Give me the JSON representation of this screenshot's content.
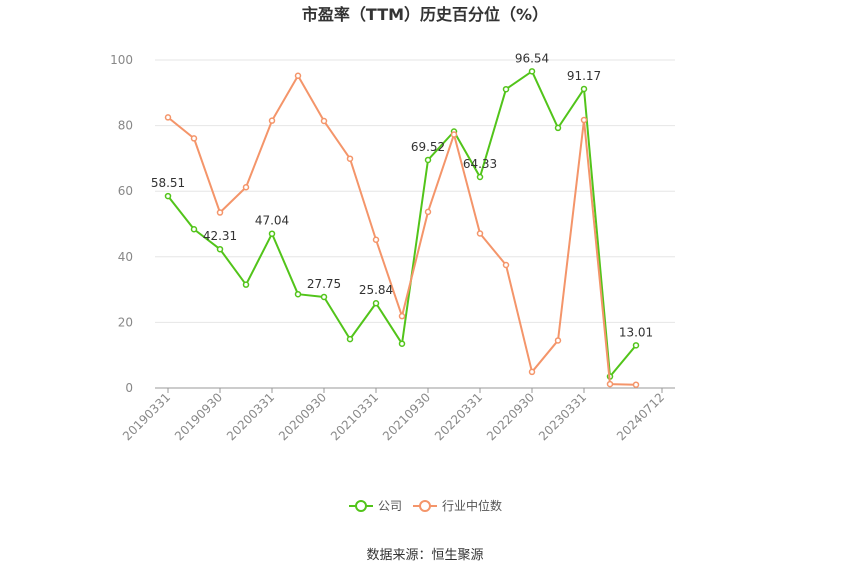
{
  "chart_data": {
    "type": "line",
    "title": "市盈率（TTM）历史百分位（%）",
    "xlabel": "",
    "ylabel": "",
    "ylim": [
      0,
      100
    ],
    "yticks": [
      0,
      20,
      40,
      60,
      80,
      100
    ],
    "x_tick_labels": [
      "20190331",
      "20190930",
      "20200331",
      "20200930",
      "20210331",
      "20210930",
      "20220331",
      "20220930",
      "20230331",
      "20240712"
    ],
    "x_tick_indices": [
      0,
      2,
      4,
      6,
      8,
      10,
      12,
      14,
      16,
      19
    ],
    "x_count": 20,
    "grid": true,
    "legend_position": "bottom",
    "series": [
      {
        "name": "公司",
        "color": "#52c41a",
        "values": [
          58.51,
          48.4,
          42.31,
          31.5,
          47.04,
          28.6,
          27.75,
          14.9,
          25.84,
          13.5,
          69.52,
          78.2,
          64.33,
          91.1,
          96.54,
          79.3,
          91.17,
          3.5,
          13.01
        ],
        "x_indices": [
          0,
          1,
          2,
          3,
          4,
          5,
          6,
          7,
          8,
          9,
          10,
          11,
          12,
          13,
          14,
          15,
          16,
          17,
          18
        ],
        "labels": {
          "0": "58.51",
          "2": "42.31",
          "4": "47.04",
          "6": "27.75",
          "8": "25.84",
          "10": "69.52",
          "12": "64.33",
          "14": "96.54",
          "16": "91.17",
          "18": "13.01"
        }
      },
      {
        "name": "行业中位数",
        "color": "#f4956a",
        "values": [
          82.5,
          76.1,
          53.5,
          61.2,
          81.5,
          95.2,
          81.4,
          69.9,
          45.2,
          21.9,
          53.7,
          77.3,
          47.1,
          37.5,
          4.9,
          14.5,
          81.7,
          1.2,
          1.0
        ],
        "x_indices": [
          0,
          1,
          2,
          3,
          4,
          5,
          6,
          7,
          8,
          9,
          10,
          11,
          12,
          13,
          14,
          15,
          16,
          17,
          18
        ]
      }
    ]
  },
  "source_text": "数据来源：恒生聚源"
}
